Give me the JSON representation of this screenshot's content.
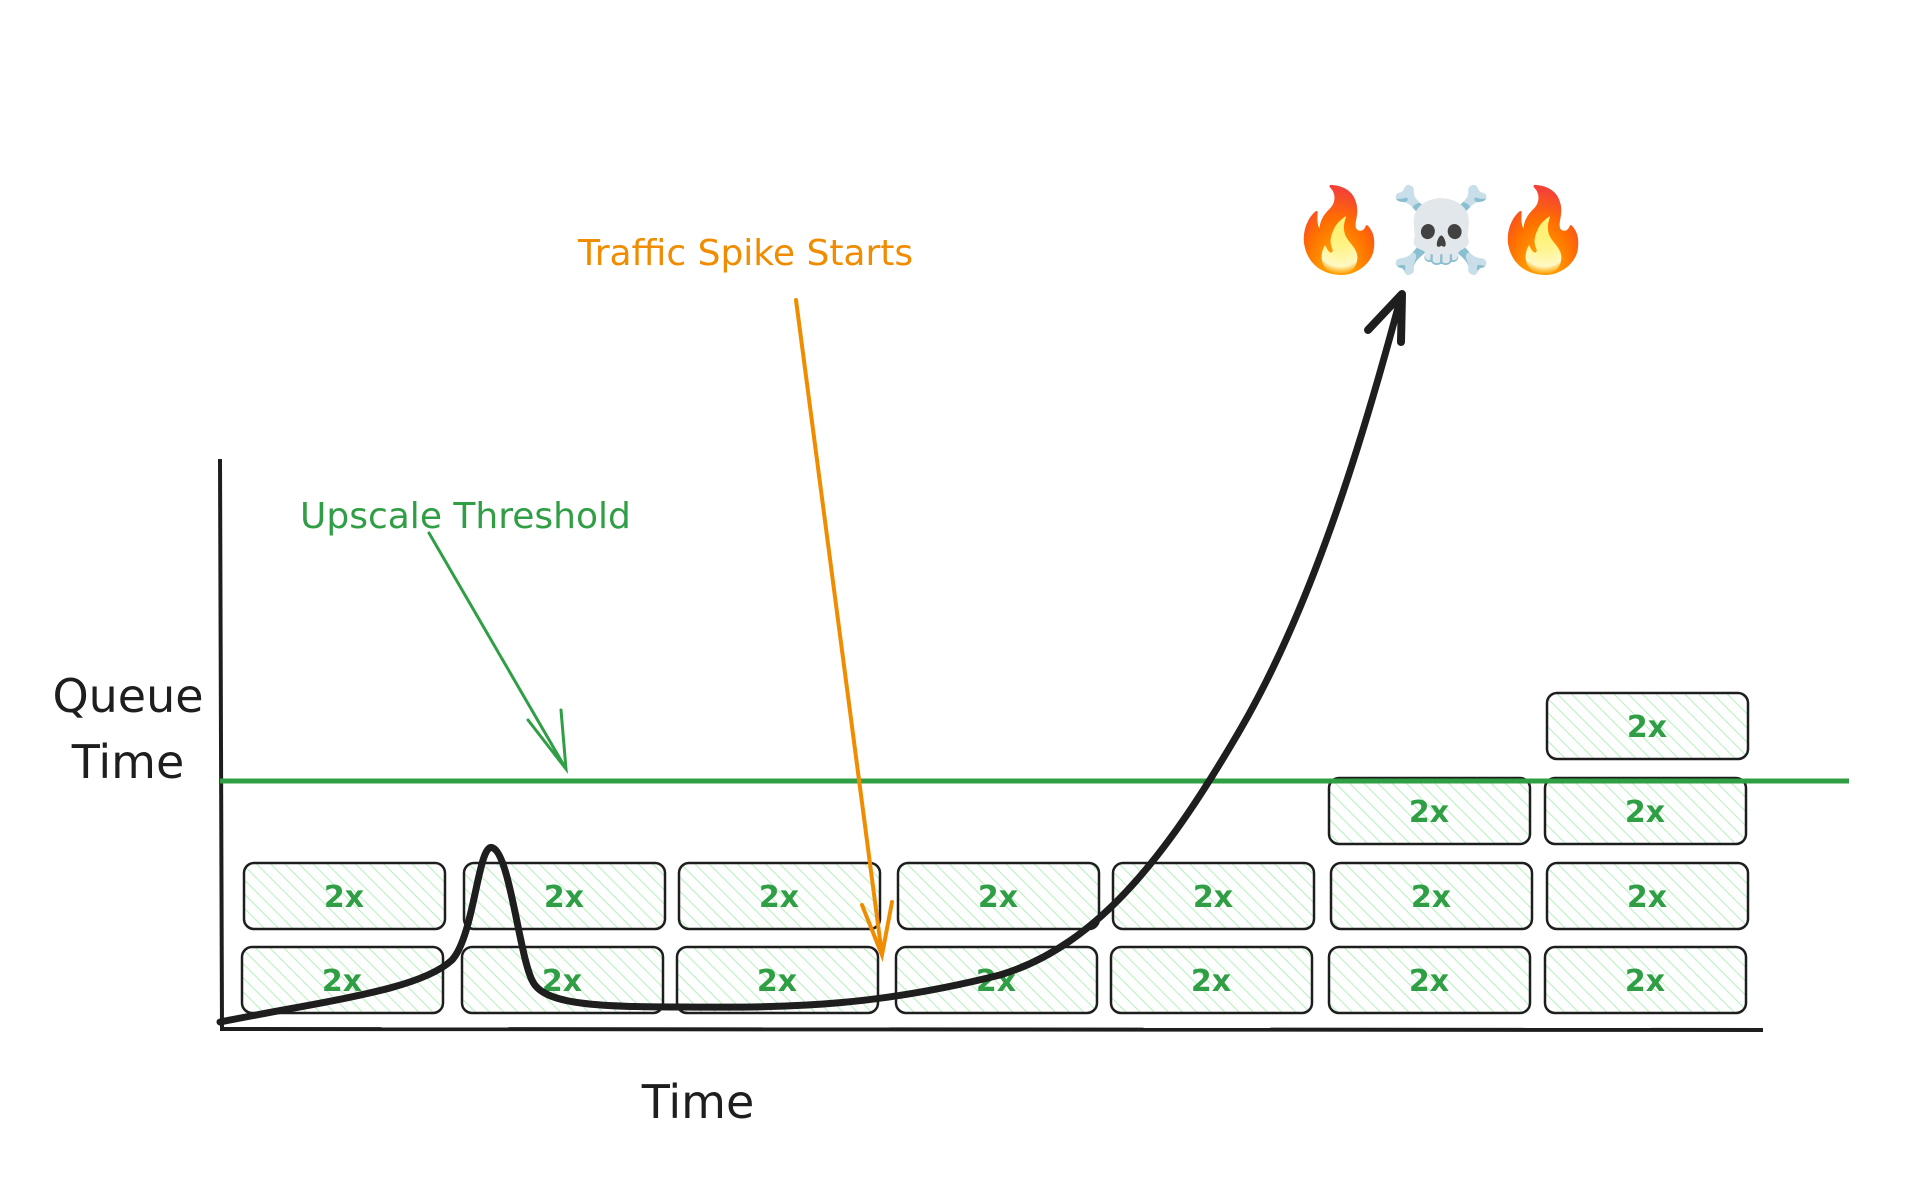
{
  "labels": {
    "y_axis": [
      "Queue",
      "Time"
    ],
    "x_axis": "Time",
    "threshold": "Upscale Threshold",
    "spike": "Traffic Spike Starts",
    "outcome_emoji": "🔥☠️🔥"
  },
  "block_label": "2x",
  "columns": [
    2,
    2,
    2,
    2,
    2,
    3,
    4
  ],
  "colors": {
    "threshold": "#2f9e44",
    "spike": "#f08c00",
    "block_fill": "#b2f2bb",
    "stroke": "#1e1e1e"
  }
}
